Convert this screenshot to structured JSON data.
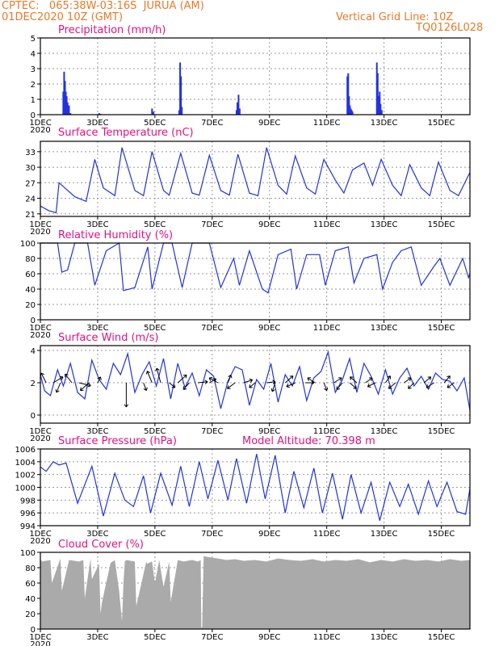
{
  "header": {
    "line1": "CPTEC:   065:38W-03:16S  JURUA (AM)",
    "line2": "01DEC2020 10Z (GMT)",
    "grid_note": "Vertical Grid Line: 10Z",
    "code": "TQ0126L028"
  },
  "colors": {
    "header": "#e8792a",
    "title": "#e0117f",
    "line": "#2233dd",
    "cloud": "#aaaaaa",
    "arrow": "#000000"
  },
  "x_axis": {
    "tick_labels": [
      "1DEC",
      "3DEC",
      "5DEC",
      "7DEC",
      "9DEC",
      "11DEC",
      "13DEC",
      "15DEC"
    ],
    "tick_days": [
      1,
      3,
      5,
      7,
      9,
      11,
      13,
      15
    ],
    "range_days": [
      1,
      16
    ],
    "year_label": "2020"
  },
  "chart_data": [
    {
      "id": "precip",
      "type": "bar",
      "title": "Precipitation (mm/h)",
      "ylim": [
        0,
        5
      ],
      "yticks": [
        "0",
        "1",
        "2",
        "3",
        "4",
        "5"
      ],
      "x": [
        1.8,
        1.83,
        1.86,
        1.89,
        1.92,
        1.95,
        2.0,
        2.05,
        3.05,
        3.1,
        4.9,
        4.95,
        5.85,
        5.88,
        5.91,
        5.94,
        7.85,
        7.88,
        7.92,
        7.96,
        11.72,
        11.75,
        11.78,
        11.81,
        11.84,
        11.87,
        11.9,
        12.75,
        12.78,
        12.82,
        12.85,
        12.88,
        12.92
      ],
      "values": [
        1.5,
        2.8,
        2.2,
        1.5,
        1.2,
        0.8,
        0.6,
        0.1,
        0.1,
        0.05,
        0.4,
        0.2,
        0.3,
        3.4,
        2.5,
        0.5,
        0.3,
        0.8,
        1.3,
        0.4,
        2.5,
        2.7,
        1.2,
        0.6,
        0.4,
        0.3,
        0.2,
        3.4,
        2.7,
        1.2,
        1.5,
        0.7,
        0.3
      ]
    },
    {
      "id": "temp",
      "type": "line",
      "title": "Surface Temperature (nC)",
      "ylim": [
        20.5,
        35
      ],
      "yticks": [
        "21",
        "24",
        "27",
        "30",
        "33"
      ],
      "x": [
        1.0,
        1.3,
        1.55,
        1.65,
        2.2,
        2.6,
        2.9,
        3.2,
        3.6,
        3.85,
        4.3,
        4.6,
        4.9,
        5.3,
        5.5,
        5.9,
        6.3,
        6.55,
        6.9,
        7.3,
        7.6,
        7.9,
        8.3,
        8.6,
        8.9,
        9.3,
        9.6,
        9.9,
        10.3,
        10.6,
        10.9,
        11.3,
        11.6,
        11.9,
        12.3,
        12.6,
        12.9,
        13.3,
        13.6,
        13.9,
        14.3,
        14.6,
        14.9,
        15.3,
        15.6,
        16.0
      ],
      "values": [
        22.5,
        21.6,
        21.2,
        27.0,
        24.3,
        23.4,
        31.5,
        26.0,
        24.5,
        33.8,
        25.5,
        24.5,
        33.0,
        25.5,
        24.6,
        32.7,
        25.0,
        24.6,
        32.3,
        25.5,
        24.6,
        32.5,
        25.0,
        24.5,
        33.8,
        26.5,
        24.8,
        32.2,
        26.0,
        24.8,
        31.5,
        27.5,
        25.0,
        29.5,
        30.8,
        26.5,
        31.5,
        26.5,
        24.5,
        30.5,
        26.0,
        24.5,
        31.0,
        25.5,
        24.5,
        29.0
      ]
    },
    {
      "id": "rh",
      "type": "line",
      "title": "Relative Humidity (%)",
      "ylim": [
        0,
        100
      ],
      "yticks": [
        "0",
        "20",
        "40",
        "60",
        "80",
        "100"
      ],
      "x": [
        1.0,
        1.6,
        1.75,
        1.95,
        2.2,
        2.65,
        2.9,
        3.3,
        3.75,
        3.9,
        4.3,
        4.75,
        4.9,
        5.3,
        5.6,
        5.95,
        6.3,
        6.9,
        7.3,
        7.75,
        7.95,
        8.3,
        8.75,
        8.95,
        9.3,
        9.75,
        9.95,
        10.3,
        10.75,
        10.95,
        11.3,
        11.75,
        11.95,
        12.3,
        12.75,
        12.95,
        13.3,
        13.6,
        13.95,
        14.3,
        14.75,
        14.95,
        15.3,
        15.75,
        15.95,
        16.0
      ],
      "values": [
        100,
        100,
        62,
        65,
        100,
        100,
        45,
        90,
        100,
        38,
        42,
        95,
        40,
        100,
        100,
        42,
        100,
        100,
        42,
        80,
        45,
        90,
        40,
        35,
        85,
        92,
        40,
        85,
        85,
        45,
        90,
        95,
        48,
        80,
        85,
        40,
        75,
        90,
        95,
        45,
        70,
        80,
        45,
        80,
        55,
        60
      ]
    },
    {
      "id": "wind",
      "type": "line",
      "title": "Surface Wind (m/s)",
      "ylim": [
        -0.5,
        4.3
      ],
      "yticks": [
        "0",
        "2",
        "4"
      ],
      "x": [
        1.0,
        1.15,
        1.35,
        1.6,
        1.8,
        2.05,
        2.3,
        2.55,
        2.8,
        3.05,
        3.3,
        3.55,
        3.8,
        4.05,
        4.3,
        4.55,
        4.8,
        5.05,
        5.3,
        5.55,
        5.8,
        6.05,
        6.3,
        6.55,
        6.8,
        7.05,
        7.3,
        7.55,
        7.8,
        8.05,
        8.3,
        8.55,
        8.8,
        9.05,
        9.3,
        9.55,
        9.8,
        10.05,
        10.3,
        10.55,
        10.8,
        11.05,
        11.3,
        11.55,
        11.8,
        12.05,
        12.3,
        12.55,
        12.8,
        13.05,
        13.3,
        13.55,
        13.8,
        14.05,
        14.3,
        14.55,
        14.8,
        15.05,
        15.3,
        15.55,
        15.8,
        16.0
      ],
      "values": [
        2.5,
        1.5,
        1.2,
        2.8,
        1.8,
        3.2,
        1.4,
        1.0,
        3.4,
        2.2,
        1.6,
        3.2,
        2.5,
        3.8,
        1.4,
        2.5,
        3.3,
        1.8,
        3.5,
        1.0,
        3.2,
        1.7,
        2.6,
        1.2,
        2.8,
        2.4,
        0.4,
        2.1,
        3.0,
        2.8,
        0.6,
        2.2,
        1.6,
        3.2,
        0.8,
        2.5,
        1.8,
        3.0,
        0.9,
        2.3,
        2.7,
        3.9,
        1.4,
        2.2,
        3.5,
        1.4,
        3.2,
        2.4,
        1.3,
        2.8,
        1.3,
        2.3,
        2.9,
        1.8,
        2.4,
        1.6,
        2.6,
        2.2,
        2.1,
        1.5,
        2.3,
        0.3
      ]
    },
    {
      "id": "pres",
      "type": "line",
      "title": "Surface Pressure (hPa)",
      "ylim": [
        994,
        1006
      ],
      "yticks": [
        "994",
        "996",
        "998",
        "1000",
        "1002",
        "1004",
        "1006"
      ],
      "x": [
        1.0,
        1.2,
        1.45,
        1.65,
        1.9,
        2.3,
        2.8,
        3.2,
        3.6,
        3.95,
        4.25,
        4.6,
        4.85,
        5.2,
        5.6,
        5.9,
        6.2,
        6.55,
        6.85,
        7.2,
        7.55,
        7.85,
        8.2,
        8.55,
        8.85,
        9.2,
        9.55,
        9.85,
        10.2,
        10.55,
        10.85,
        11.2,
        11.55,
        11.85,
        12.2,
        12.55,
        12.85,
        13.2,
        13.55,
        13.85,
        14.2,
        14.55,
        14.85,
        15.2,
        15.55,
        15.85,
        16.0
      ],
      "values": [
        1003.2,
        1002.5,
        1004.0,
        1003.5,
        1003.8,
        997.5,
        1003.3,
        995.5,
        1002.2,
        998.0,
        997.0,
        1001.8,
        996.0,
        1002.2,
        997.2,
        1003.3,
        997.0,
        1004.0,
        998.2,
        1004.2,
        998.0,
        1004.5,
        997.5,
        1005.2,
        998.2,
        1005.0,
        996.0,
        1002.5,
        996.8,
        1003.0,
        996.0,
        1002.2,
        995.0,
        1002.0,
        996.0,
        1000.8,
        994.8,
        1000.8,
        997.0,
        1000.5,
        995.8,
        1001.0,
        997.0,
        1000.8,
        996.2,
        995.8,
        999.8
      ]
    },
    {
      "id": "cloud",
      "type": "area",
      "title": "Cloud Cover (%)",
      "ylim": [
        0,
        100
      ],
      "yticks": [
        "0",
        "20",
        "40",
        "60",
        "80",
        "100"
      ],
      "x": [
        1.0,
        1.05,
        1.35,
        1.4,
        1.7,
        1.75,
        2.0,
        2.35,
        2.5,
        2.55,
        2.75,
        2.8,
        3.05,
        3.1,
        3.15,
        3.45,
        3.6,
        3.75,
        3.85,
        3.9,
        3.95,
        4.0,
        4.3,
        4.35,
        4.7,
        4.72,
        4.9,
        5.0,
        5.15,
        5.3,
        5.5,
        5.55,
        5.8,
        6.0,
        6.3,
        6.5,
        6.6,
        6.62,
        6.65,
        6.7,
        7.0,
        7.2,
        7.5,
        7.8,
        8.1,
        8.5,
        8.9,
        9.3,
        9.7,
        10.1,
        10.5,
        10.9,
        11.3,
        11.7,
        12.1,
        12.5,
        12.9,
        13.3,
        13.7,
        14.1,
        14.5,
        14.9,
        15.3,
        15.7,
        16.0
      ],
      "values": [
        92,
        88,
        90,
        60,
        92,
        50,
        90,
        88,
        90,
        40,
        92,
        65,
        85,
        20,
        35,
        86,
        90,
        50,
        10,
        60,
        88,
        90,
        88,
        30,
        88,
        85,
        88,
        60,
        90,
        55,
        88,
        35,
        90,
        88,
        90,
        88,
        90,
        2,
        2,
        95,
        93,
        92,
        90,
        91,
        89,
        90,
        88,
        92,
        90,
        89,
        91,
        88,
        90,
        89,
        91,
        87,
        90,
        88,
        91,
        89,
        90,
        88,
        91,
        89,
        90
      ]
    }
  ],
  "panels": {
    "precip": {
      "title": "Precipitation (mm/h)"
    },
    "temp": {
      "title": "Surface Temperature (nC)"
    },
    "rh": {
      "title": "Relative Humidity (%)"
    },
    "wind": {
      "title": "Surface Wind (m/s)"
    },
    "pres": {
      "title": "Surface Pressure (hPa)",
      "altitude": "Model Altitude: 70.398 m"
    },
    "cloud": {
      "title": "Cloud Cover (%)"
    }
  },
  "wind_vectors": [
    {
      "day": 1.2,
      "u": -0.5,
      "v": 1.0
    },
    {
      "day": 1.45,
      "u": 1.0,
      "v": 0.6
    },
    {
      "day": 1.7,
      "u": -0.4,
      "v": -1.0
    },
    {
      "day": 2.1,
      "u": -0.7,
      "v": 0.9
    },
    {
      "day": 2.35,
      "u": 1.2,
      "v": -0.3
    },
    {
      "day": 2.7,
      "u": -0.9,
      "v": -0.8
    },
    {
      "day": 3.0,
      "u": 0.3,
      "v": 0.6
    },
    {
      "day": 4.0,
      "u": 0.0,
      "v": -2.5
    },
    {
      "day": 4.6,
      "u": 0.3,
      "v": -0.8
    },
    {
      "day": 4.9,
      "u": -0.5,
      "v": 1.2
    },
    {
      "day": 5.2,
      "u": -0.4,
      "v": 1.5
    },
    {
      "day": 5.5,
      "u": 0.6,
      "v": -0.5
    },
    {
      "day": 5.8,
      "u": 0.9,
      "v": 0.8
    },
    {
      "day": 6.2,
      "u": -0.6,
      "v": -0.7
    },
    {
      "day": 6.5,
      "u": 1.0,
      "v": 0.1
    },
    {
      "day": 6.9,
      "u": 0.7,
      "v": 0.4
    },
    {
      "day": 7.2,
      "u": -0.9,
      "v": 0.5
    },
    {
      "day": 7.55,
      "u": 0.3,
      "v": 0.8
    },
    {
      "day": 7.8,
      "u": -0.8,
      "v": -0.6
    },
    {
      "day": 8.1,
      "u": 0.9,
      "v": 0.3
    },
    {
      "day": 8.5,
      "u": -0.6,
      "v": -0.5
    },
    {
      "day": 8.9,
      "u": 0.9,
      "v": 0.1
    },
    {
      "day": 9.2,
      "u": -0.3,
      "v": -0.9
    },
    {
      "day": 9.55,
      "u": 0.8,
      "v": 0.7
    },
    {
      "day": 9.9,
      "u": -0.9,
      "v": -0.4
    },
    {
      "day": 10.25,
      "u": 0.9,
      "v": 0.0
    },
    {
      "day": 10.6,
      "u": -0.8,
      "v": 0.5
    },
    {
      "day": 10.9,
      "u": 0.3,
      "v": -0.8
    },
    {
      "day": 11.25,
      "u": 0.8,
      "v": 0.5
    },
    {
      "day": 11.55,
      "u": -0.6,
      "v": -0.7
    },
    {
      "day": 11.8,
      "u": 0.7,
      "v": -0.6
    },
    {
      "day": 12.05,
      "u": -0.7,
      "v": 0.6
    },
    {
      "day": 12.35,
      "u": 0.7,
      "v": 0.5
    },
    {
      "day": 12.7,
      "u": -0.8,
      "v": -0.4
    },
    {
      "day": 13.05,
      "u": 0.5,
      "v": 0.7
    },
    {
      "day": 13.4,
      "u": -0.7,
      "v": -0.6
    },
    {
      "day": 13.7,
      "u": 0.7,
      "v": 0.5
    },
    {
      "day": 14.05,
      "u": -0.6,
      "v": -0.6
    },
    {
      "day": 14.4,
      "u": 0.7,
      "v": 0.6
    },
    {
      "day": 14.75,
      "u": -0.8,
      "v": -0.5
    },
    {
      "day": 15.1,
      "u": 0.6,
      "v": 0.7
    },
    {
      "day": 15.45,
      "u": -0.7,
      "v": -0.5
    }
  ]
}
